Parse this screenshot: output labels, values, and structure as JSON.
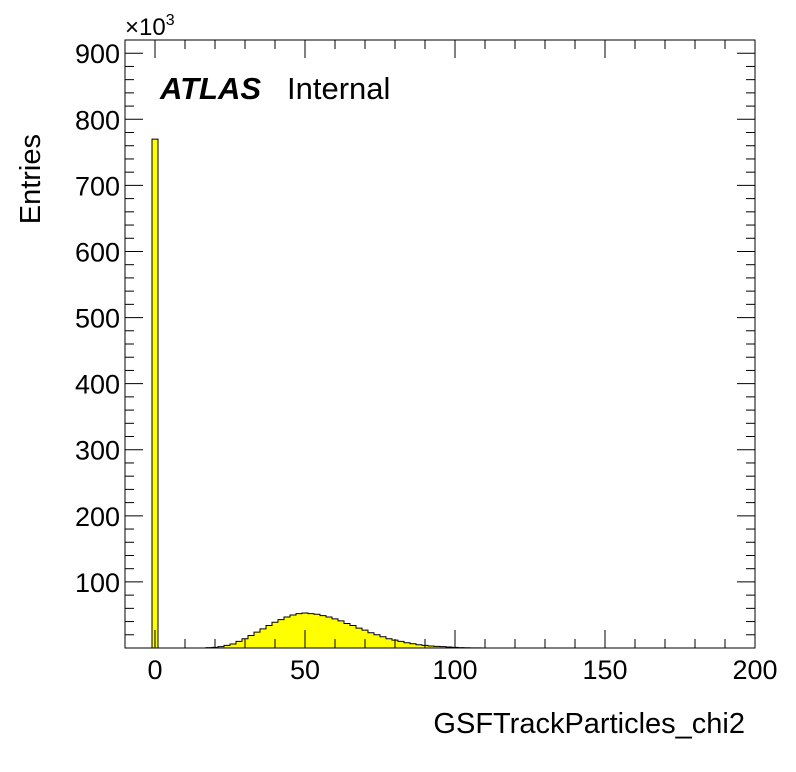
{
  "chart_data": {
    "type": "bar",
    "xlabel": "GSFTrackParticles_chi2",
    "ylabel": "Entries",
    "y_multiplier_base": "×10",
    "y_multiplier_exp": "3",
    "xlim": [
      -10,
      200
    ],
    "ylim": [
      0,
      920
    ],
    "x_ticks": [
      0,
      50,
      100,
      150,
      200
    ],
    "y_ticks": [
      100,
      200,
      300,
      400,
      500,
      600,
      700,
      800,
      900
    ],
    "bin_width": 2,
    "spike": {
      "x_low": -1,
      "x_high": 1,
      "value": 770
    },
    "bins": {
      "x_start": 17,
      "values": [
        0.5,
        1,
        2,
        4,
        6,
        10,
        14,
        19,
        24,
        29,
        34,
        39,
        43,
        47,
        50,
        52,
        53,
        52,
        51,
        49,
        47,
        44,
        41,
        37,
        34,
        30,
        27,
        23,
        20,
        17,
        14,
        12,
        10,
        8,
        6.5,
        5,
        4,
        3,
        2.5,
        2,
        1.5,
        1,
        0.6,
        0.4,
        0.2,
        0.1
      ]
    },
    "colors": {
      "fill": "#ffff00",
      "line": "#000000"
    },
    "annotations": {
      "experiment": "ATLAS",
      "status": "Internal"
    }
  }
}
